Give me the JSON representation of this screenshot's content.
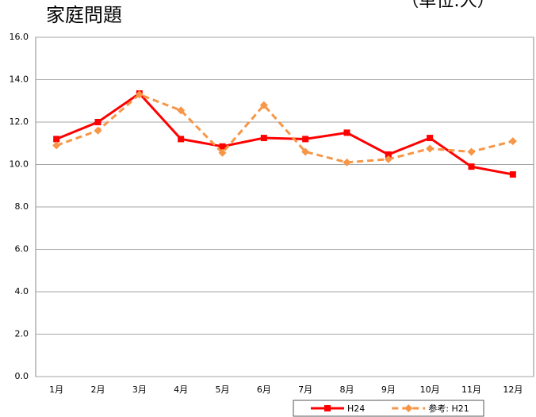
{
  "chart_data": {
    "type": "line",
    "title": "家庭問題",
    "unit_note": "（単位:人）",
    "categories": [
      "1月",
      "2月",
      "3月",
      "4月",
      "5月",
      "6月",
      "7月",
      "8月",
      "9月",
      "10月",
      "11月",
      "12月"
    ],
    "series": [
      {
        "name": "H24",
        "color": "#ff0000",
        "dashed": false,
        "marker": "square",
        "values": [
          11.2,
          12.0,
          13.35,
          11.2,
          10.85,
          11.25,
          11.2,
          11.5,
          10.47,
          11.25,
          9.9,
          9.53
        ]
      },
      {
        "name": "参考: H21",
        "color": "#f79646",
        "dashed": true,
        "marker": "diamond",
        "values": [
          10.9,
          11.6,
          13.3,
          12.55,
          10.55,
          12.8,
          10.6,
          10.1,
          10.25,
          10.75,
          10.6,
          11.1
        ]
      }
    ],
    "ylim": [
      0,
      16
    ],
    "yticks": [
      {
        "value": 0,
        "label": "0.0"
      },
      {
        "value": 2,
        "label": "2.0"
      },
      {
        "value": 4,
        "label": "4.0"
      },
      {
        "value": 6,
        "label": "6.0"
      },
      {
        "value": 8,
        "label": "8.0"
      },
      {
        "value": 10,
        "label": "10.0"
      },
      {
        "value": 12,
        "label": "12.0"
      },
      {
        "value": 14,
        "label": "14.0"
      },
      {
        "value": 16,
        "label": "16.0"
      }
    ],
    "grid": true,
    "legend": "bottom-right"
  }
}
